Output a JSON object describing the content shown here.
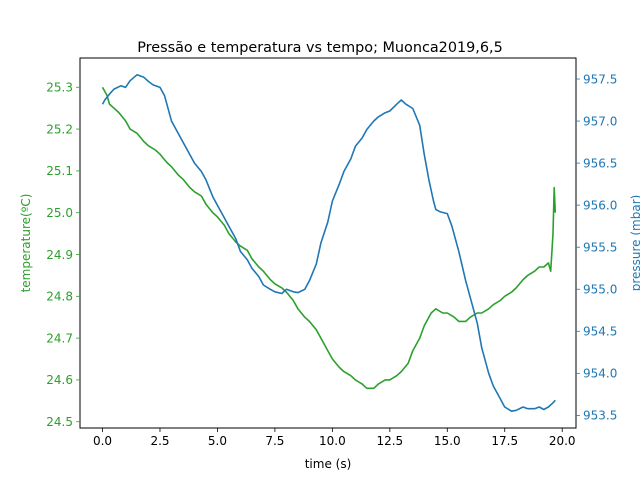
{
  "chart_data": {
    "type": "line",
    "title": "Pressão e temperatura vs tempo; Muonca2019,6,5",
    "xlabel": "time (s)",
    "ylabel_left": "temperature(ºC)",
    "ylabel_right": "pressure (mbar)",
    "xlim": [
      -0.98,
      20.6
    ],
    "ylim_left": [
      24.485,
      25.37
    ],
    "ylim_right": [
      953.35,
      957.75
    ],
    "x_ticks": [
      0.0,
      2.5,
      5.0,
      7.5,
      10.0,
      12.5,
      15.0,
      17.5,
      20.0
    ],
    "x_tick_labels": [
      "0.0",
      "2.5",
      "5.0",
      "7.5",
      "10.0",
      "12.5",
      "15.0",
      "17.5",
      "20.0"
    ],
    "left_ticks": [
      24.5,
      24.6,
      24.7,
      24.8,
      24.9,
      25.0,
      25.1,
      25.2,
      25.3
    ],
    "left_tick_labels": [
      "24.5",
      "24.6",
      "24.7",
      "24.8",
      "24.9",
      "25.0",
      "25.1",
      "25.2",
      "25.3"
    ],
    "right_ticks": [
      953.5,
      954.0,
      954.5,
      955.0,
      955.5,
      956.0,
      956.5,
      957.0,
      957.5
    ],
    "right_tick_labels": [
      "953.5",
      "954.0",
      "954.5",
      "955.0",
      "955.5",
      "956.0",
      "956.5",
      "957.0",
      "957.5"
    ],
    "grid": false,
    "series": [
      {
        "axis": "left",
        "color": "#2ca02c",
        "x": [
          0.0,
          0.1,
          0.2,
          0.3,
          0.5,
          0.7,
          1.0,
          1.2,
          1.5,
          1.8,
          2.0,
          2.3,
          2.5,
          2.8,
          3.0,
          3.3,
          3.5,
          3.8,
          4.0,
          4.3,
          4.5,
          4.8,
          5.0,
          5.3,
          5.5,
          5.8,
          6.0,
          6.3,
          6.5,
          6.8,
          7.0,
          7.3,
          7.5,
          7.8,
          8.0,
          8.3,
          8.5,
          8.8,
          9.0,
          9.3,
          9.5,
          9.8,
          10.0,
          10.3,
          10.5,
          10.8,
          11.0,
          11.3,
          11.5,
          11.8,
          12.0,
          12.3,
          12.5,
          12.8,
          13.0,
          13.3,
          13.5,
          13.8,
          14.0,
          14.3,
          14.5,
          14.8,
          15.0,
          15.3,
          15.5,
          15.8,
          16.0,
          16.3,
          16.5,
          16.8,
          17.0,
          17.3,
          17.5,
          17.8,
          18.0,
          18.3,
          18.5,
          18.8,
          19.0,
          19.2,
          19.4,
          19.5,
          19.6,
          19.65,
          19.7
        ],
        "values": [
          25.3,
          25.29,
          25.28,
          25.26,
          25.25,
          25.24,
          25.22,
          25.2,
          25.19,
          25.17,
          25.16,
          25.15,
          25.14,
          25.12,
          25.11,
          25.09,
          25.08,
          25.06,
          25.05,
          25.04,
          25.02,
          25.0,
          24.99,
          24.97,
          24.95,
          24.93,
          24.92,
          24.91,
          24.89,
          24.87,
          24.86,
          24.84,
          24.83,
          24.82,
          24.81,
          24.79,
          24.77,
          24.75,
          24.74,
          24.72,
          24.7,
          24.67,
          24.65,
          24.63,
          24.62,
          24.61,
          24.6,
          24.59,
          24.58,
          24.58,
          24.59,
          24.6,
          24.6,
          24.61,
          24.62,
          24.64,
          24.67,
          24.7,
          24.73,
          24.76,
          24.77,
          24.76,
          24.76,
          24.75,
          24.74,
          24.74,
          24.75,
          24.76,
          24.76,
          24.77,
          24.78,
          24.79,
          24.8,
          24.81,
          24.82,
          24.84,
          24.85,
          24.86,
          24.87,
          24.87,
          24.88,
          24.86,
          24.95,
          25.06,
          25.0
        ]
      },
      {
        "axis": "right",
        "color": "#1f77b4",
        "x": [
          0.0,
          0.1,
          0.3,
          0.5,
          0.8,
          1.0,
          1.2,
          1.5,
          1.8,
          2.0,
          2.2,
          2.5,
          2.7,
          2.9,
          3.0,
          3.2,
          3.5,
          3.8,
          4.0,
          4.3,
          4.5,
          4.8,
          5.0,
          5.3,
          5.5,
          5.8,
          6.0,
          6.3,
          6.5,
          6.8,
          7.0,
          7.3,
          7.5,
          7.8,
          8.0,
          8.3,
          8.5,
          8.8,
          9.0,
          9.3,
          9.5,
          9.8,
          10.0,
          10.3,
          10.5,
          10.8,
          11.0,
          11.3,
          11.5,
          11.8,
          12.0,
          12.3,
          12.5,
          12.8,
          13.0,
          13.2,
          13.5,
          13.8,
          14.0,
          14.2,
          14.4,
          14.5,
          14.7,
          15.0,
          15.2,
          15.5,
          15.8,
          16.0,
          16.3,
          16.5,
          16.8,
          17.0,
          17.3,
          17.5,
          17.8,
          18.0,
          18.3,
          18.5,
          18.8,
          19.0,
          19.2,
          19.4,
          19.6,
          19.7
        ],
        "values": [
          957.2,
          957.25,
          957.32,
          957.38,
          957.42,
          957.4,
          957.48,
          957.55,
          957.52,
          957.47,
          957.43,
          957.4,
          957.3,
          957.1,
          957.0,
          956.9,
          956.75,
          956.6,
          956.5,
          956.4,
          956.3,
          956.1,
          956.0,
          955.85,
          955.75,
          955.6,
          955.45,
          955.35,
          955.25,
          955.15,
          955.05,
          955.0,
          954.97,
          954.95,
          955.0,
          954.97,
          954.96,
          955.0,
          955.1,
          955.3,
          955.55,
          955.8,
          956.05,
          956.25,
          956.4,
          956.55,
          956.7,
          956.8,
          956.9,
          957.0,
          957.05,
          957.1,
          957.12,
          957.2,
          957.25,
          957.2,
          957.15,
          956.95,
          956.6,
          956.3,
          956.05,
          955.95,
          955.92,
          955.9,
          955.75,
          955.45,
          955.1,
          954.9,
          954.6,
          954.3,
          954.0,
          953.85,
          953.7,
          953.6,
          953.55,
          953.56,
          953.6,
          953.58,
          953.58,
          953.6,
          953.57,
          953.6,
          953.65,
          953.68
        ]
      }
    ]
  }
}
